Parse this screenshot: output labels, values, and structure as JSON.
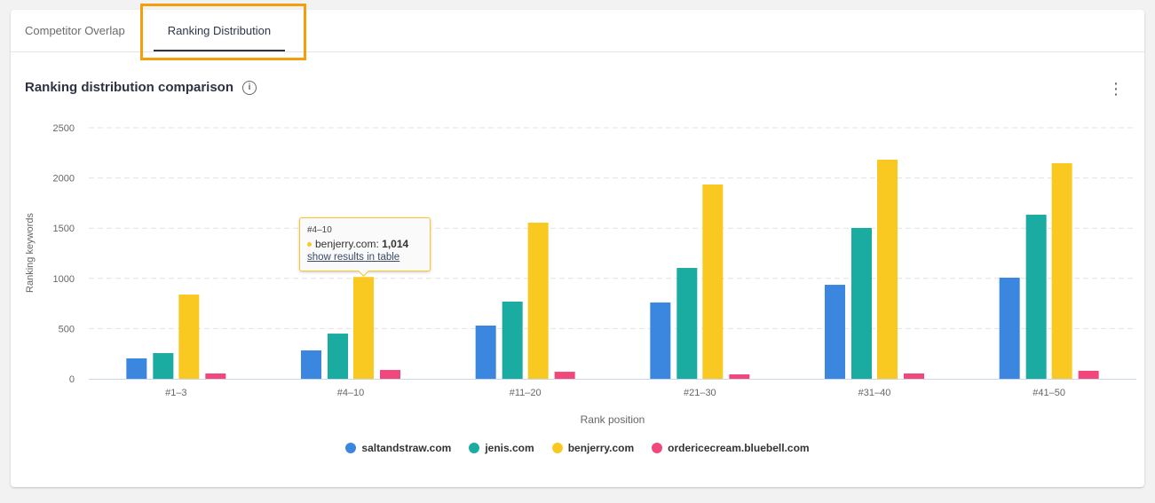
{
  "tabs": [
    {
      "label": "Competitor Overlap"
    },
    {
      "label": "Ranking Distribution",
      "active": true
    }
  ],
  "title": "Ranking distribution comparison",
  "icons": {
    "info": "info-icon",
    "menu": "kebab-menu-icon"
  },
  "tooltip": {
    "category": "#4–10",
    "series": "benjerry.com",
    "value": "1,014",
    "link": "show results in table"
  },
  "chart_data": {
    "type": "bar",
    "title": "Ranking distribution comparison",
    "xlabel": "Rank position",
    "ylabel": "Ranking keywords",
    "ylim": [
      0,
      2500
    ],
    "yticks": [
      "0",
      "500",
      "1000",
      "1500",
      "2000",
      "2500"
    ],
    "grid": true,
    "legend": "bottom",
    "categories": [
      "#1–3",
      "#4–10",
      "#11–20",
      "#21–30",
      "#31–40",
      "#41–50"
    ],
    "series": [
      {
        "name": "saltandstraw.com",
        "color": "#3b87e0",
        "values": [
          203,
          283,
          530,
          760,
          936,
          1007
        ]
      },
      {
        "name": "jenis.com",
        "color": "#1aaba1",
        "values": [
          256,
          450,
          769,
          1104,
          1502,
          1634
        ]
      },
      {
        "name": "benjerry.com",
        "color": "#f9c922",
        "values": [
          839,
          1014,
          1555,
          1935,
          2182,
          2147
        ]
      },
      {
        "name": "ordericecream.bluebell.com",
        "color": "#f2477b",
        "values": [
          53,
          88,
          70,
          44,
          53,
          80
        ]
      }
    ]
  }
}
